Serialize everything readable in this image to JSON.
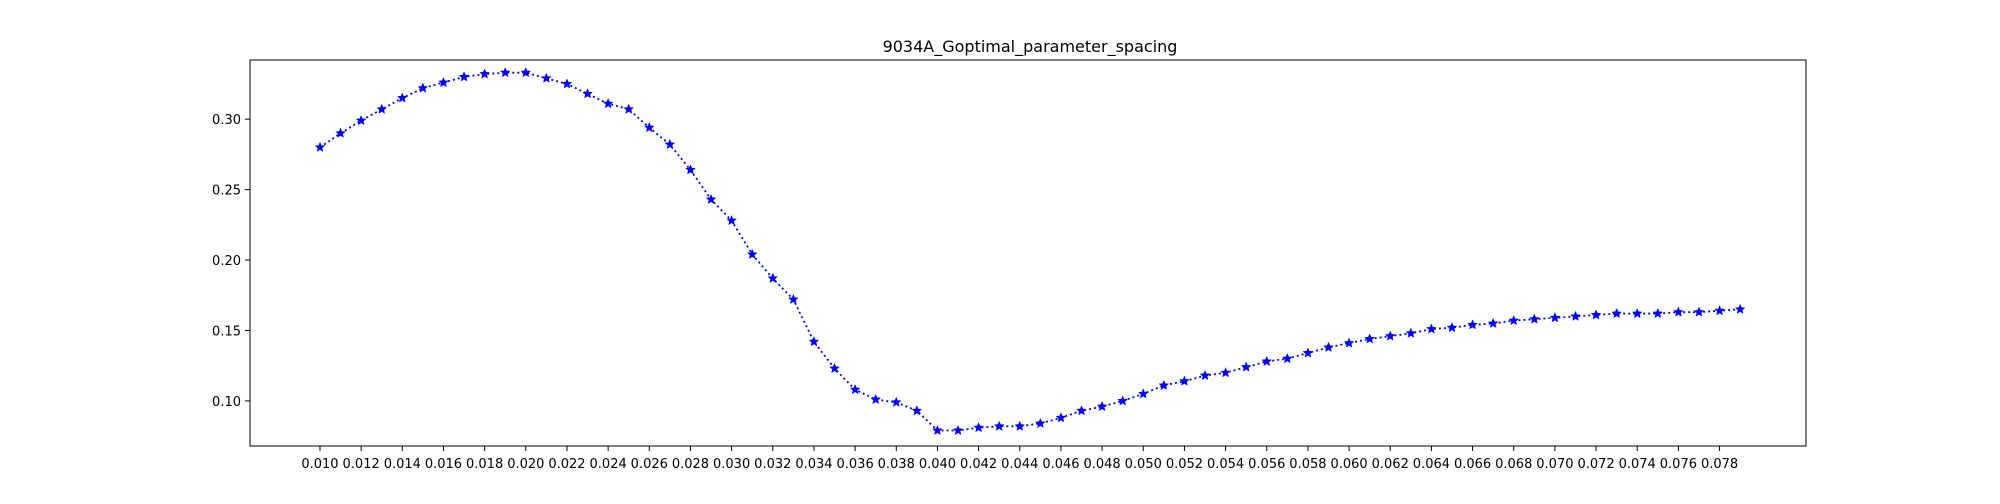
{
  "chart_data": {
    "type": "line",
    "title": "9034A_Goptimal_parameter_spacing",
    "xlabel": "",
    "ylabel": "",
    "x_ticks": [
      "0.010",
      "0.012",
      "0.014",
      "0.016",
      "0.018",
      "0.020",
      "0.022",
      "0.024",
      "0.026",
      "0.028",
      "0.030",
      "0.032",
      "0.034",
      "0.036",
      "0.038",
      "0.040",
      "0.042",
      "0.044",
      "0.046",
      "0.048",
      "0.050",
      "0.052",
      "0.054",
      "0.056",
      "0.058",
      "0.060",
      "0.062",
      "0.064",
      "0.066",
      "0.068",
      "0.070",
      "0.072",
      "0.074",
      "0.076",
      "0.078"
    ],
    "y_ticks": [
      "0.10",
      "0.15",
      "0.20",
      "0.25",
      "0.30"
    ],
    "xlim": [
      0.0066,
      0.0822
    ],
    "ylim": [
      0.068,
      0.342
    ],
    "grid": false,
    "color": "#0000ff",
    "line_style": "dotted",
    "marker": "star",
    "x": [
      0.01,
      0.011,
      0.012,
      0.013,
      0.014,
      0.015,
      0.016,
      0.017,
      0.018,
      0.019,
      0.02,
      0.021,
      0.022,
      0.023,
      0.024,
      0.025,
      0.026,
      0.027,
      0.028,
      0.029,
      0.03,
      0.031,
      0.032,
      0.033,
      0.034,
      0.035,
      0.036,
      0.037,
      0.038,
      0.039,
      0.04,
      0.041,
      0.042,
      0.043,
      0.044,
      0.045,
      0.046,
      0.047,
      0.048,
      0.049,
      0.05,
      0.051,
      0.052,
      0.053,
      0.054,
      0.055,
      0.056,
      0.057,
      0.058,
      0.059,
      0.06,
      0.061,
      0.062,
      0.063,
      0.064,
      0.065,
      0.066,
      0.067,
      0.068,
      0.069,
      0.07,
      0.071,
      0.072,
      0.073,
      0.074,
      0.075,
      0.076,
      0.077,
      0.078,
      0.079
    ],
    "y": [
      0.28,
      0.29,
      0.299,
      0.307,
      0.315,
      0.322,
      0.326,
      0.33,
      0.332,
      0.333,
      0.333,
      0.329,
      0.325,
      0.318,
      0.311,
      0.307,
      0.294,
      0.282,
      0.264,
      0.243,
      0.228,
      0.204,
      0.187,
      0.172,
      0.142,
      0.123,
      0.108,
      0.101,
      0.099,
      0.093,
      0.079,
      0.079,
      0.081,
      0.082,
      0.082,
      0.084,
      0.088,
      0.093,
      0.096,
      0.1,
      0.105,
      0.111,
      0.114,
      0.118,
      0.12,
      0.124,
      0.128,
      0.13,
      0.134,
      0.138,
      0.141,
      0.144,
      0.146,
      0.148,
      0.151,
      0.152,
      0.154,
      0.155,
      0.157,
      0.158,
      0.159,
      0.16,
      0.161,
      0.162,
      0.162,
      0.162,
      0.163,
      0.163,
      0.164,
      0.165
    ]
  }
}
